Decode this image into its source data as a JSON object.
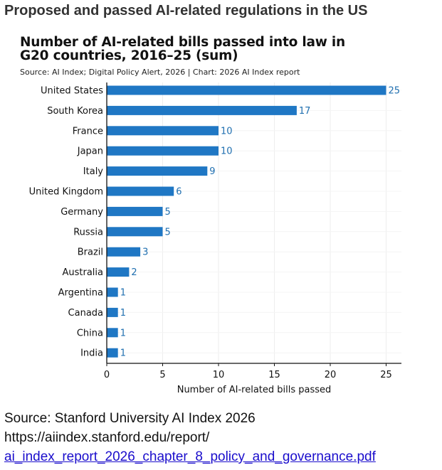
{
  "page": {
    "heading": "Proposed and passed AI-related regulations in the US"
  },
  "chart_data": {
    "type": "bar",
    "orientation": "horizontal",
    "title": "Number of AI-related bills passed into law in G20 countries, 2016–25 (sum)",
    "source": "Source: AI Index; Digital Policy Alert, 2026 | Chart: 2026 AI Index report",
    "xlabel": "Number of AI-related bills passed",
    "ylabel": "",
    "xlim": [
      0,
      26
    ],
    "xticks": [
      0,
      5,
      10,
      15,
      20,
      25
    ],
    "grid": true,
    "bar_color": "#1f77c4",
    "label_color": "#1f6fb0",
    "categories": [
      "United States",
      "South Korea",
      "France",
      "Japan",
      "Italy",
      "United Kingdom",
      "Germany",
      "Russia",
      "Brazil",
      "Australia",
      "Argentina",
      "Canada",
      "China",
      "India"
    ],
    "values": [
      25,
      17,
      10,
      10,
      9,
      6,
      5,
      5,
      3,
      2,
      1,
      1,
      1,
      1
    ]
  },
  "footer": {
    "source": "Source: Stanford University AI Index 2026",
    "url_line1": "https://aiindex.stanford.edu/report/",
    "url_line2": "ai_index_report_2026_chapter_8_policy_and_governance.pdf"
  }
}
